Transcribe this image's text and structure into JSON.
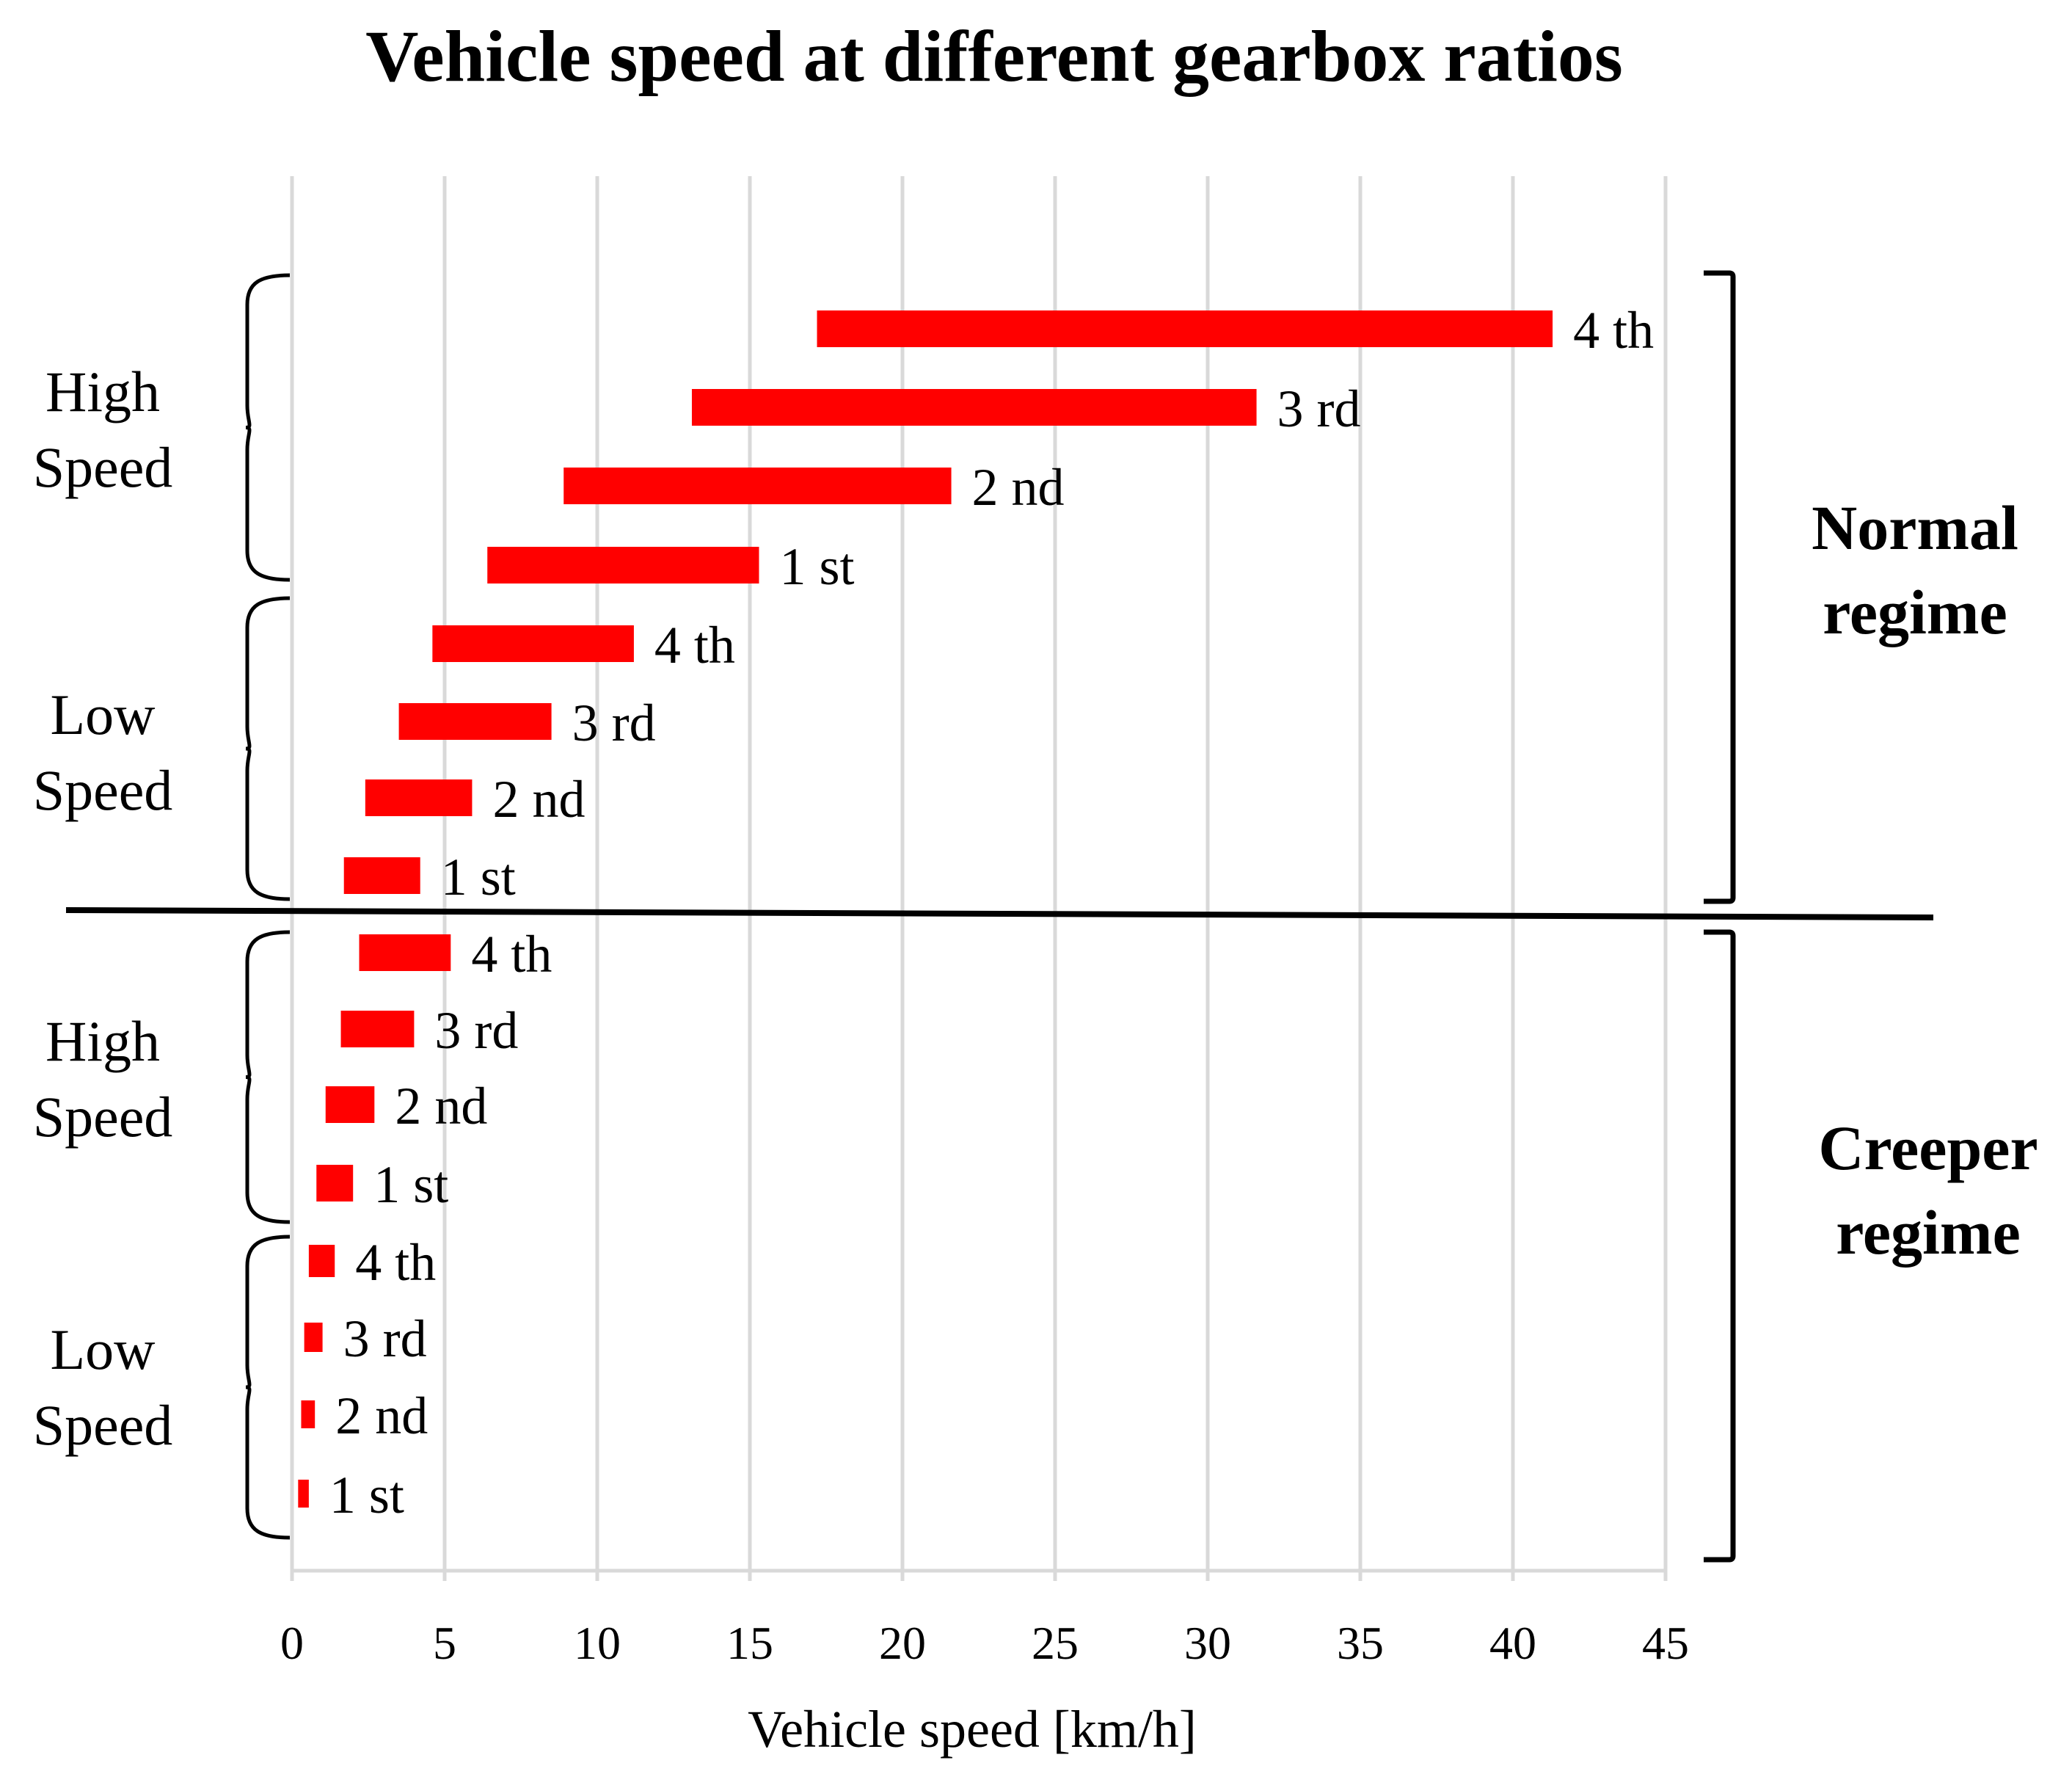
{
  "chart_data": {
    "type": "bar",
    "subtype": "floating-horizontal-range",
    "title": "Vehicle speed at different gearbox ratios",
    "xlabel": "Vehicle speed [km/h]",
    "ylabel": "",
    "xlim": [
      0,
      45
    ],
    "xticks": [
      "0",
      "5",
      "10",
      "15",
      "20",
      "25",
      "30",
      "35",
      "40",
      "45"
    ],
    "grid": "vertical",
    "bar_color": "#ff0000",
    "series": [
      {
        "regime": "Normal regime",
        "group": "High Speed",
        "gear": "4 th",
        "min": 17.2,
        "max": 41.3
      },
      {
        "regime": "Normal regime",
        "group": "High Speed",
        "gear": "3 rd",
        "min": 13.1,
        "max": 31.6
      },
      {
        "regime": "Normal regime",
        "group": "High Speed",
        "gear": "2 nd",
        "min": 8.9,
        "max": 21.6
      },
      {
        "regime": "Normal regime",
        "group": "High Speed",
        "gear": "1 st",
        "min": 6.4,
        "max": 15.3
      },
      {
        "regime": "Normal regime",
        "group": "Low Speed",
        "gear": "4 th",
        "min": 4.6,
        "max": 11.2
      },
      {
        "regime": "Normal regime",
        "group": "Low Speed",
        "gear": "3 rd",
        "min": 3.5,
        "max": 8.5
      },
      {
        "regime": "Normal regime",
        "group": "Low Speed",
        "gear": "2 nd",
        "min": 2.4,
        "max": 5.9
      },
      {
        "regime": "Normal regime",
        "group": "Low Speed",
        "gear": "1 st",
        "min": 1.7,
        "max": 4.2
      },
      {
        "regime": "Creeper regime",
        "group": "High Speed",
        "gear": "4 th",
        "min": 2.2,
        "max": 5.2
      },
      {
        "regime": "Creeper regime",
        "group": "High Speed",
        "gear": "3 rd",
        "min": 1.6,
        "max": 4.0
      },
      {
        "regime": "Creeper regime",
        "group": "High Speed",
        "gear": "2 nd",
        "min": 1.1,
        "max": 2.7
      },
      {
        "regime": "Creeper regime",
        "group": "High Speed",
        "gear": "1 st",
        "min": 0.8,
        "max": 2.0
      },
      {
        "regime": "Creeper regime",
        "group": "Low Speed",
        "gear": "4 th",
        "min": 0.55,
        "max": 1.4
      },
      {
        "regime": "Creeper regime",
        "group": "Low Speed",
        "gear": "3 rd",
        "min": 0.4,
        "max": 1.0
      },
      {
        "regime": "Creeper regime",
        "group": "Low Speed",
        "gear": "2 nd",
        "min": 0.3,
        "max": 0.75
      },
      {
        "regime": "Creeper regime",
        "group": "Low Speed",
        "gear": "1 st",
        "min": 0.2,
        "max": 0.55
      }
    ],
    "group_labels": [
      {
        "line1": "High",
        "line2": "Speed"
      },
      {
        "line1": "Low",
        "line2": "Speed"
      },
      {
        "line1": "High",
        "line2": "Speed"
      },
      {
        "line1": "Low",
        "line2": "Speed"
      }
    ],
    "regime_labels": [
      {
        "line1": "Normal",
        "line2": "regime"
      },
      {
        "line1": "Creeper",
        "line2": "regime"
      }
    ]
  }
}
